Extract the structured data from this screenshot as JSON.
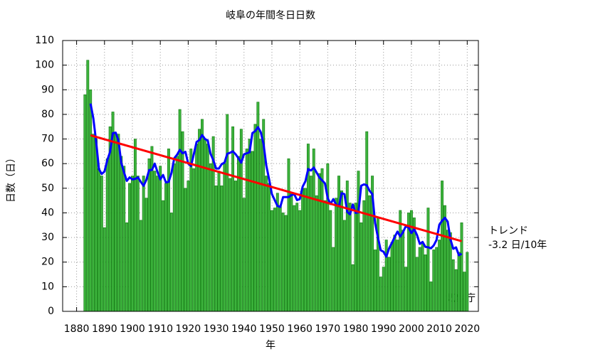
{
  "chart_data": {
    "type": "bar",
    "title": "岐阜の年間冬日日数",
    "xlabel": "年",
    "ylabel": "日数（日）",
    "x": [
      1883,
      1884,
      1885,
      1886,
      1887,
      1888,
      1889,
      1890,
      1891,
      1892,
      1893,
      1894,
      1895,
      1896,
      1897,
      1898,
      1899,
      1900,
      1901,
      1902,
      1903,
      1904,
      1905,
      1906,
      1907,
      1908,
      1909,
      1910,
      1911,
      1912,
      1913,
      1914,
      1915,
      1916,
      1917,
      1918,
      1919,
      1920,
      1921,
      1922,
      1923,
      1924,
      1925,
      1926,
      1927,
      1928,
      1929,
      1930,
      1931,
      1932,
      1933,
      1934,
      1935,
      1936,
      1937,
      1938,
      1939,
      1940,
      1941,
      1942,
      1943,
      1944,
      1945,
      1946,
      1947,
      1948,
      1949,
      1950,
      1951,
      1952,
      1953,
      1954,
      1955,
      1956,
      1957,
      1958,
      1959,
      1960,
      1961,
      1962,
      1963,
      1964,
      1965,
      1966,
      1967,
      1968,
      1969,
      1970,
      1971,
      1972,
      1973,
      1974,
      1975,
      1976,
      1977,
      1978,
      1979,
      1980,
      1981,
      1982,
      1983,
      1984,
      1985,
      1986,
      1987,
      1988,
      1989,
      1990,
      1991,
      1992,
      1993,
      1994,
      1995,
      1996,
      1997,
      1998,
      1999,
      2000,
      2001,
      2002,
      2003,
      2004,
      2005,
      2006,
      2007,
      2008,
      2009,
      2010,
      2011,
      2012,
      2013,
      2014,
      2015,
      2016,
      2017,
      2018,
      2019,
      2020
    ],
    "values": [
      88,
      102,
      90,
      72,
      70,
      58,
      55,
      34,
      62,
      75,
      81,
      72,
      72,
      63,
      59,
      36,
      52,
      55,
      70,
      55,
      37,
      55,
      46,
      62,
      67,
      57,
      55,
      59,
      45,
      52,
      66,
      40,
      60,
      63,
      82,
      73,
      50,
      53,
      66,
      58,
      68,
      74,
      78,
      70,
      68,
      60,
      71,
      51,
      57,
      51,
      60,
      80,
      54,
      75,
      53,
      63,
      74,
      46,
      66,
      70,
      65,
      76,
      85,
      70,
      78,
      55,
      52,
      41,
      42,
      48,
      43,
      40,
      39,
      62,
      48,
      43,
      44,
      41,
      50,
      50,
      68,
      55,
      66,
      47,
      56,
      58,
      45,
      60,
      41,
      26,
      46,
      55,
      49,
      37,
      53,
      44,
      19,
      44,
      57,
      36,
      45,
      73,
      47,
      55,
      25,
      38,
      14,
      18,
      29,
      22,
      28,
      31,
      29,
      41,
      33,
      18,
      40,
      41,
      38,
      22,
      26,
      28,
      23,
      42,
      12,
      25,
      26,
      29,
      53,
      43,
      33,
      32,
      21,
      17,
      24,
      36,
      16,
      24
    ],
    "color": "#3cb33c",
    "lines": [
      {
        "color": "#0000ff",
        "x": [
          1885,
          1886,
          1887,
          1888,
          1889,
          1890,
          1891,
          1892,
          1893,
          1894,
          1895,
          1896,
          1897,
          1898,
          1899,
          1900,
          1901,
          1902,
          1903,
          1904,
          1905,
          1906,
          1907,
          1908,
          1909,
          1910,
          1911,
          1912,
          1913,
          1914,
          1915,
          1916,
          1917,
          1918,
          1919,
          1920,
          1921,
          1922,
          1923,
          1924,
          1925,
          1926,
          1927,
          1928,
          1929,
          1930,
          1931,
          1932,
          1933,
          1934,
          1935,
          1936,
          1937,
          1938,
          1939,
          1940,
          1941,
          1942,
          1943,
          1944,
          1945,
          1946,
          1947,
          1948,
          1949,
          1950,
          1951,
          1952,
          1953,
          1954,
          1955,
          1956,
          1957,
          1958,
          1959,
          1960,
          1961,
          1962,
          1963,
          1964,
          1965,
          1966,
          1967,
          1968,
          1969,
          1970,
          1971,
          1972,
          1973,
          1974,
          1975,
          1976,
          1977,
          1978,
          1979,
          1980,
          1981,
          1982,
          1983,
          1984,
          1985,
          1986,
          1987,
          1988,
          1989,
          1990,
          1991,
          1992,
          1993,
          1994,
          1995,
          1996,
          1997,
          1998,
          1999,
          2000,
          2001,
          2002,
          2003,
          2004,
          2005,
          2006,
          2007,
          2008,
          2009,
          2010,
          2011,
          2012,
          2013,
          2014,
          2015,
          2016,
          2017,
          2018
        ],
        "values": [
          84.4,
          78.4,
          69,
          57.8,
          55.8,
          56.8,
          61.4,
          64.8,
          72.4,
          72.6,
          69.4,
          60.4,
          56.4,
          53,
          54.4,
          53.6,
          53.8,
          54.4,
          52.6,
          51,
          53.4,
          57.4,
          57.4,
          60,
          56.6,
          53.6,
          55.4,
          52.4,
          52.6,
          56.2,
          62.2,
          63.6,
          65.6,
          64.2,
          64.8,
          60,
          59,
          63.8,
          68.8,
          69.6,
          71.6,
          70,
          69.4,
          64,
          61.4,
          58,
          58,
          59.8,
          60.4,
          64,
          64.4,
          65,
          63.8,
          62.2,
          60.4,
          63.8,
          64.2,
          64.6,
          72.4,
          73.2,
          74.8,
          72.8,
          68,
          59.2,
          53.6,
          47.6,
          45.2,
          42.8,
          42.4,
          46.4,
          46.4,
          46.4,
          47.2,
          47.6,
          45.2,
          45.6,
          50.6,
          52.8,
          57.8,
          57.2,
          58.4,
          56.4,
          54.4,
          53.2,
          52,
          46,
          43.6,
          45.6,
          43.4,
          42.6,
          48,
          47.6,
          40.4,
          39.4,
          43.4,
          40,
          40.2,
          51,
          51.6,
          51.2,
          49,
          47.6,
          35.8,
          30,
          24.8,
          24.2,
          22.2,
          25.6,
          27.8,
          30.2,
          32.4,
          30.4,
          32.2,
          34.6,
          34,
          31.8,
          33.4,
          31,
          27.4,
          28.2,
          26.2,
          26,
          25.6,
          26.8,
          29,
          35.2,
          36.8,
          38,
          36.4,
          29.2,
          25.4,
          26,
          22.8,
          23.4
        ]
      },
      {
        "color": "#ff0000",
        "x": [
          1885,
          2018
        ],
        "values": [
          71.5,
          28.5
        ]
      }
    ],
    "trend_label": "トレンド",
    "trend_value": "-3.2 日/10年",
    "source": "気象庁",
    "xlim": [
      1875,
      2024
    ],
    "ylim": [
      0,
      110
    ],
    "xticks": [
      1880,
      1890,
      1900,
      1910,
      1920,
      1930,
      1940,
      1950,
      1960,
      1970,
      1980,
      1990,
      2000,
      2010,
      2020
    ],
    "yticks": [
      0,
      10,
      20,
      30,
      40,
      50,
      60,
      70,
      80,
      90,
      100,
      110
    ],
    "grid": true
  }
}
